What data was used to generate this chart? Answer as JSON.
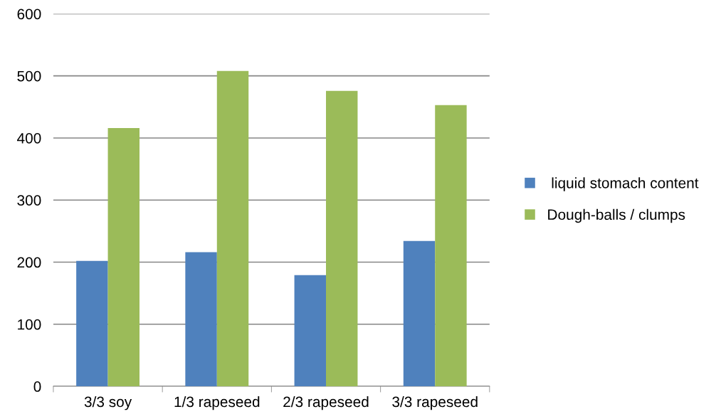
{
  "chart_data": {
    "type": "bar",
    "categories": [
      "3/3 soy",
      "1/3 rapeseed",
      "2/3 rapeseed",
      "3/3 rapeseed"
    ],
    "series": [
      {
        "name": " liquid stomach content",
        "color": "#4f81bd",
        "values": [
          202,
          216,
          179,
          234
        ]
      },
      {
        "name": "Dough-balls / clumps",
        "color": "#9bbb59",
        "values": [
          416,
          508,
          476,
          453
        ]
      }
    ],
    "ylim": [
      0,
      600
    ],
    "yticks": [
      0,
      100,
      200,
      300,
      400,
      500,
      600
    ],
    "grid": "y",
    "legend": "right"
  }
}
